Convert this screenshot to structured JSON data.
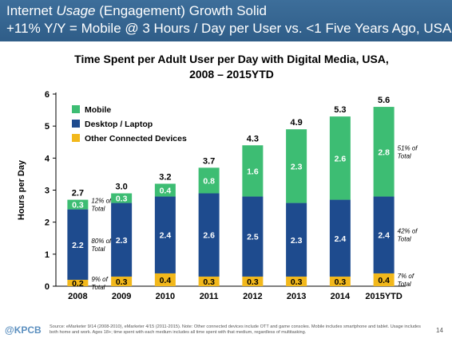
{
  "header": {
    "line1_plain": "Internet ",
    "line1_italic": "Usage",
    "line1_rest": " (Engagement) Growth Solid",
    "line2": "+11% Y/Y = Mobile @ 3 Hours / Day per User vs. <1  Five Years Ago, USA"
  },
  "footer": {
    "logo": "@KPCB",
    "source": "Source: eMarketer 9/14 (2008-2010), eMarketer 4/15 (2011-2015). Note: Other connected devices include OTT and game consoles. Mobile includes smartphone and tablet. Usage includes both home and work. Ages 18+; time spent with each medium includes all time spent with that medium, regardless of multitasking.",
    "page_number": "14"
  },
  "colors": {
    "mobile": "#3dbd73",
    "desktop": "#1e4b8e",
    "other": "#f2b81b",
    "banner": "#2f5d88"
  },
  "chart_data": {
    "type": "bar",
    "stacked": true,
    "title_line1": "Time Spent per Adult User per Day with Digital Media, USA,",
    "title_line2": "2008 – 2015YTD",
    "ylabel": "Hours per Day",
    "xlabel": "",
    "ylim": [
      0,
      6
    ],
    "yticks": [
      "0",
      "1",
      "2",
      "3",
      "4",
      "5",
      "6"
    ],
    "grid": false,
    "legend_position": "top-left",
    "categories": [
      "2008",
      "2009",
      "2010",
      "2011",
      "2012",
      "2013",
      "2014",
      "2015YTD"
    ],
    "series": [
      {
        "name": "Other Connected Devices",
        "key": "other",
        "values": [
          0.2,
          0.3,
          0.4,
          0.3,
          0.3,
          0.3,
          0.3,
          0.4
        ],
        "labels": [
          "0.2",
          "0.3",
          "0.4",
          "0.3",
          "0.3",
          "0.3",
          "0.3",
          "0.4"
        ]
      },
      {
        "name": "Desktop / Laptop",
        "key": "desktop",
        "values": [
          2.2,
          2.3,
          2.4,
          2.6,
          2.5,
          2.3,
          2.4,
          2.4
        ],
        "labels": [
          "2.2",
          "2.3",
          "2.4",
          "2.6",
          "2.5",
          "2.3",
          "2.4",
          "2.4"
        ]
      },
      {
        "name": "Mobile",
        "key": "mobile",
        "values": [
          0.3,
          0.3,
          0.4,
          0.8,
          1.6,
          2.3,
          2.6,
          2.8
        ],
        "labels": [
          "0.3",
          "0.3",
          "0.4",
          "0.8",
          "1.6",
          "2.3",
          "2.6",
          "2.8"
        ]
      }
    ],
    "legend_order": [
      "Mobile",
      "Desktop / Laptop",
      "Other Connected Devices"
    ],
    "totals": [
      "2.7",
      "3.0",
      "3.2",
      "3.7",
      "4.3",
      "4.9",
      "5.3",
      "5.6"
    ],
    "annotations": [
      {
        "text_line1": "12% of",
        "text_line2": "Total",
        "category": "2008",
        "series": "mobile"
      },
      {
        "text_line1": "80% of",
        "text_line2": "Total",
        "category": "2008",
        "series": "desktop"
      },
      {
        "text_line1": "9% of",
        "text_line2": "Total",
        "category": "2008",
        "series": "other"
      },
      {
        "text_line1": "51% of",
        "text_line2": "Total",
        "category": "2015YTD",
        "series": "mobile"
      },
      {
        "text_line1": "42% of",
        "text_line2": "Total",
        "category": "2015YTD",
        "series": "desktop"
      },
      {
        "text_line1": "7% of",
        "text_line2": "Total",
        "category": "2015YTD",
        "series": "other"
      }
    ]
  }
}
